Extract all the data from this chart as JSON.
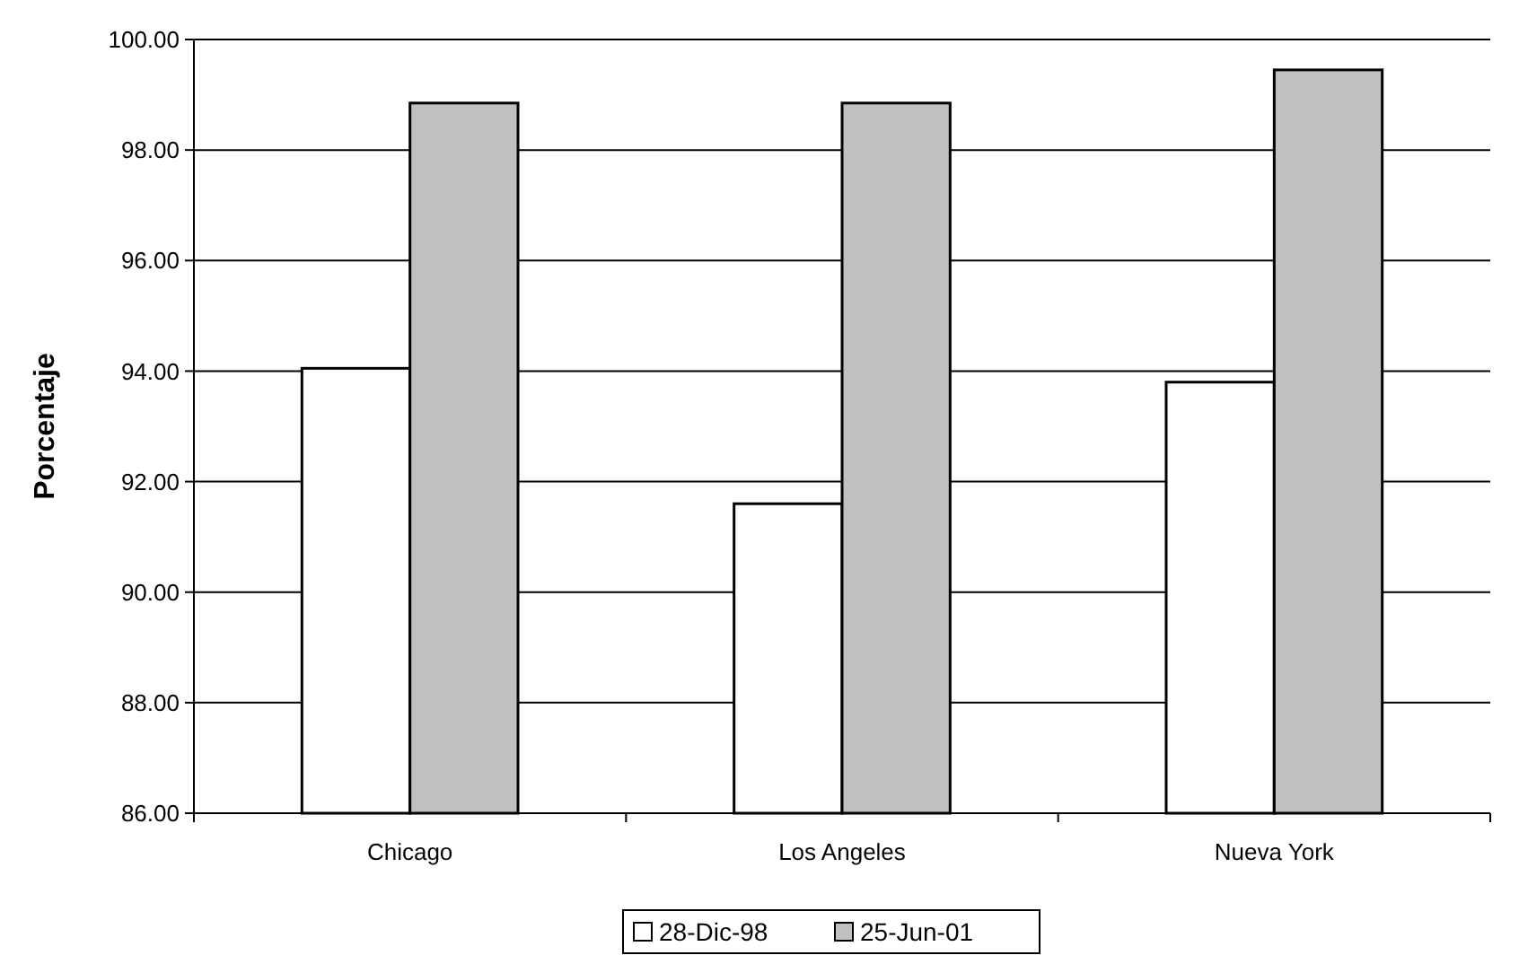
{
  "chart_data": {
    "type": "bar",
    "ylabel": "Porcentaje",
    "categories": [
      "Chicago",
      "Los Angeles",
      "Nueva York"
    ],
    "series": [
      {
        "name": "28-Dic-98",
        "color": "#ffffff",
        "values": [
          94.05,
          91.6,
          93.8
        ]
      },
      {
        "name": "25-Jun-01",
        "color": "#c0c0c0",
        "values": [
          98.85,
          98.85,
          99.45
        ]
      }
    ],
    "ylim": [
      86,
      100
    ],
    "yticks": [
      {
        "value": 86,
        "label": "86.00"
      },
      {
        "value": 88,
        "label": "88.00"
      },
      {
        "value": 90,
        "label": "90.00"
      },
      {
        "value": 92,
        "label": "92.00"
      },
      {
        "value": 94,
        "label": "94.00"
      },
      {
        "value": 96,
        "label": "96.00"
      },
      {
        "value": 98,
        "label": "98.00"
      },
      {
        "value": 100,
        "label": "100.00"
      }
    ],
    "grid": "y",
    "legend": "bottom"
  }
}
